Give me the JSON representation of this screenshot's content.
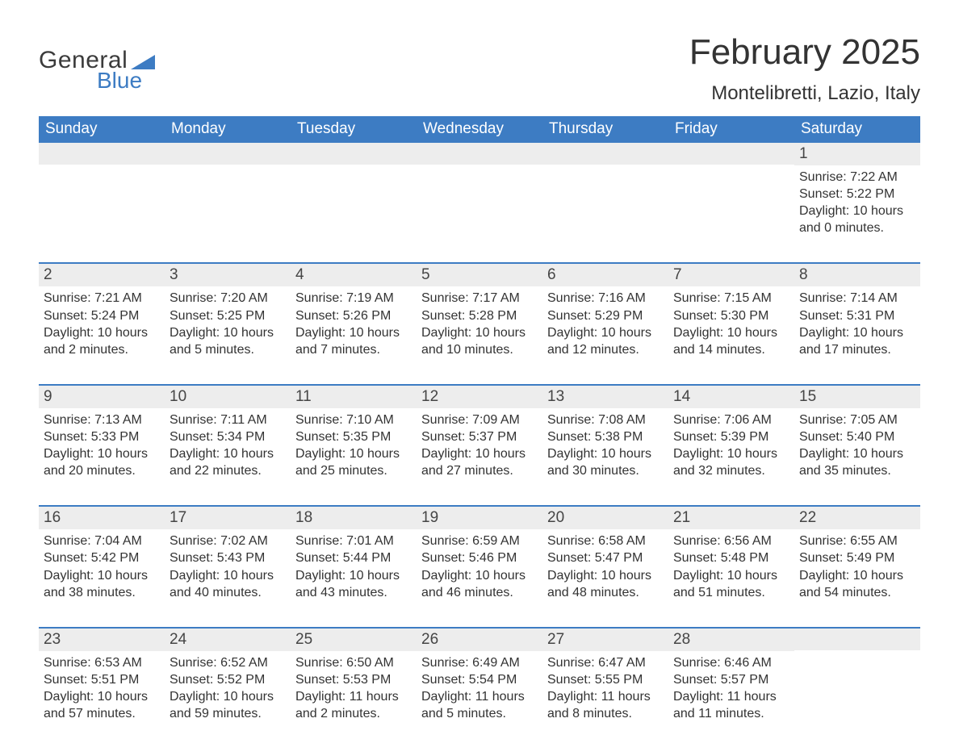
{
  "logo": {
    "text1": "General",
    "text2": "Blue",
    "icon_color": "#3d7cc3"
  },
  "title": "February 2025",
  "subtitle": "Montelibretti, Lazio, Italy",
  "colors": {
    "header_bg": "#3d7cc3",
    "header_text": "#ffffff",
    "daynum_bg": "#ededed",
    "body_text": "#333333",
    "rule": "#3d7cc3"
  },
  "weekdays": [
    "Sunday",
    "Monday",
    "Tuesday",
    "Wednesday",
    "Thursday",
    "Friday",
    "Saturday"
  ],
  "weeks": [
    [
      null,
      null,
      null,
      null,
      null,
      null,
      {
        "n": "1",
        "sunrise": "Sunrise: 7:22 AM",
        "sunset": "Sunset: 5:22 PM",
        "daylight": "Daylight: 10 hours and 0 minutes."
      }
    ],
    [
      {
        "n": "2",
        "sunrise": "Sunrise: 7:21 AM",
        "sunset": "Sunset: 5:24 PM",
        "daylight": "Daylight: 10 hours and 2 minutes."
      },
      {
        "n": "3",
        "sunrise": "Sunrise: 7:20 AM",
        "sunset": "Sunset: 5:25 PM",
        "daylight": "Daylight: 10 hours and 5 minutes."
      },
      {
        "n": "4",
        "sunrise": "Sunrise: 7:19 AM",
        "sunset": "Sunset: 5:26 PM",
        "daylight": "Daylight: 10 hours and 7 minutes."
      },
      {
        "n": "5",
        "sunrise": "Sunrise: 7:17 AM",
        "sunset": "Sunset: 5:28 PM",
        "daylight": "Daylight: 10 hours and 10 minutes."
      },
      {
        "n": "6",
        "sunrise": "Sunrise: 7:16 AM",
        "sunset": "Sunset: 5:29 PM",
        "daylight": "Daylight: 10 hours and 12 minutes."
      },
      {
        "n": "7",
        "sunrise": "Sunrise: 7:15 AM",
        "sunset": "Sunset: 5:30 PM",
        "daylight": "Daylight: 10 hours and 14 minutes."
      },
      {
        "n": "8",
        "sunrise": "Sunrise: 7:14 AM",
        "sunset": "Sunset: 5:31 PM",
        "daylight": "Daylight: 10 hours and 17 minutes."
      }
    ],
    [
      {
        "n": "9",
        "sunrise": "Sunrise: 7:13 AM",
        "sunset": "Sunset: 5:33 PM",
        "daylight": "Daylight: 10 hours and 20 minutes."
      },
      {
        "n": "10",
        "sunrise": "Sunrise: 7:11 AM",
        "sunset": "Sunset: 5:34 PM",
        "daylight": "Daylight: 10 hours and 22 minutes."
      },
      {
        "n": "11",
        "sunrise": "Sunrise: 7:10 AM",
        "sunset": "Sunset: 5:35 PM",
        "daylight": "Daylight: 10 hours and 25 minutes."
      },
      {
        "n": "12",
        "sunrise": "Sunrise: 7:09 AM",
        "sunset": "Sunset: 5:37 PM",
        "daylight": "Daylight: 10 hours and 27 minutes."
      },
      {
        "n": "13",
        "sunrise": "Sunrise: 7:08 AM",
        "sunset": "Sunset: 5:38 PM",
        "daylight": "Daylight: 10 hours and 30 minutes."
      },
      {
        "n": "14",
        "sunrise": "Sunrise: 7:06 AM",
        "sunset": "Sunset: 5:39 PM",
        "daylight": "Daylight: 10 hours and 32 minutes."
      },
      {
        "n": "15",
        "sunrise": "Sunrise: 7:05 AM",
        "sunset": "Sunset: 5:40 PM",
        "daylight": "Daylight: 10 hours and 35 minutes."
      }
    ],
    [
      {
        "n": "16",
        "sunrise": "Sunrise: 7:04 AM",
        "sunset": "Sunset: 5:42 PM",
        "daylight": "Daylight: 10 hours and 38 minutes."
      },
      {
        "n": "17",
        "sunrise": "Sunrise: 7:02 AM",
        "sunset": "Sunset: 5:43 PM",
        "daylight": "Daylight: 10 hours and 40 minutes."
      },
      {
        "n": "18",
        "sunrise": "Sunrise: 7:01 AM",
        "sunset": "Sunset: 5:44 PM",
        "daylight": "Daylight: 10 hours and 43 minutes."
      },
      {
        "n": "19",
        "sunrise": "Sunrise: 6:59 AM",
        "sunset": "Sunset: 5:46 PM",
        "daylight": "Daylight: 10 hours and 46 minutes."
      },
      {
        "n": "20",
        "sunrise": "Sunrise: 6:58 AM",
        "sunset": "Sunset: 5:47 PM",
        "daylight": "Daylight: 10 hours and 48 minutes."
      },
      {
        "n": "21",
        "sunrise": "Sunrise: 6:56 AM",
        "sunset": "Sunset: 5:48 PM",
        "daylight": "Daylight: 10 hours and 51 minutes."
      },
      {
        "n": "22",
        "sunrise": "Sunrise: 6:55 AM",
        "sunset": "Sunset: 5:49 PM",
        "daylight": "Daylight: 10 hours and 54 minutes."
      }
    ],
    [
      {
        "n": "23",
        "sunrise": "Sunrise: 6:53 AM",
        "sunset": "Sunset: 5:51 PM",
        "daylight": "Daylight: 10 hours and 57 minutes."
      },
      {
        "n": "24",
        "sunrise": "Sunrise: 6:52 AM",
        "sunset": "Sunset: 5:52 PM",
        "daylight": "Daylight: 10 hours and 59 minutes."
      },
      {
        "n": "25",
        "sunrise": "Sunrise: 6:50 AM",
        "sunset": "Sunset: 5:53 PM",
        "daylight": "Daylight: 11 hours and 2 minutes."
      },
      {
        "n": "26",
        "sunrise": "Sunrise: 6:49 AM",
        "sunset": "Sunset: 5:54 PM",
        "daylight": "Daylight: 11 hours and 5 minutes."
      },
      {
        "n": "27",
        "sunrise": "Sunrise: 6:47 AM",
        "sunset": "Sunset: 5:55 PM",
        "daylight": "Daylight: 11 hours and 8 minutes."
      },
      {
        "n": "28",
        "sunrise": "Sunrise: 6:46 AM",
        "sunset": "Sunset: 5:57 PM",
        "daylight": "Daylight: 11 hours and 11 minutes."
      },
      null
    ]
  ]
}
